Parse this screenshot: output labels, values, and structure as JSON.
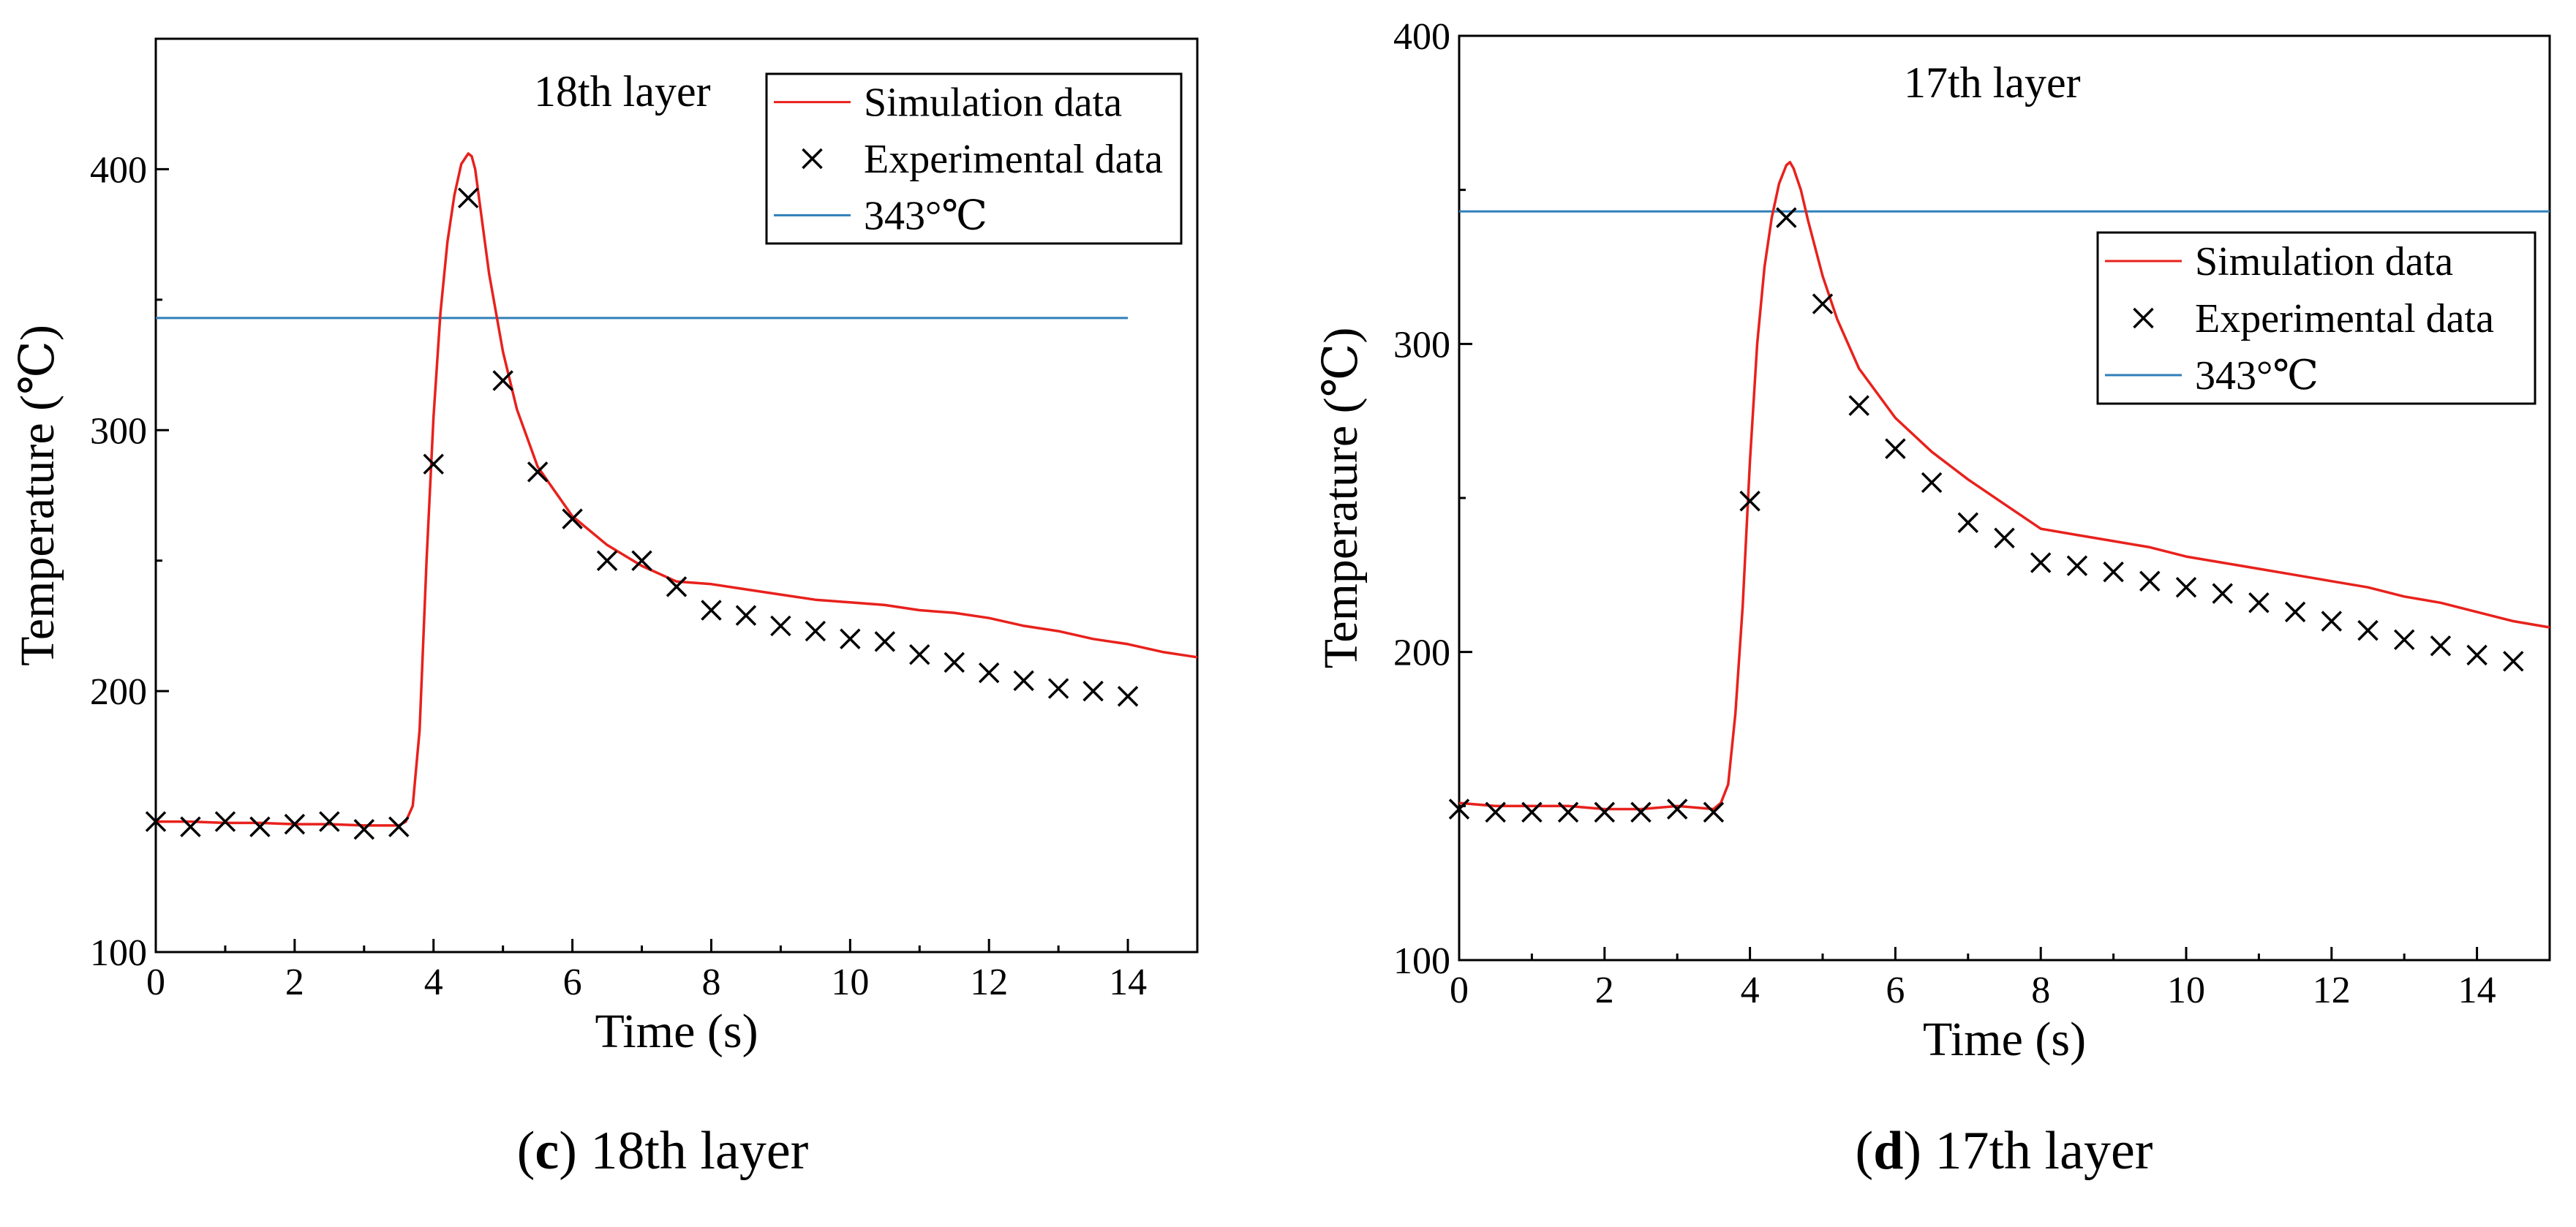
{
  "colors": {
    "simulation": "#e8211c",
    "threshold": "#2f7fb8",
    "experimental": "#000000",
    "axis": "#000000"
  },
  "chart_data": [
    {
      "type": "line",
      "panel": "c",
      "title": "18th layer",
      "caption_letter": "c",
      "caption_text": " 18th layer",
      "xlabel": "Time (s)",
      "ylabel": "Temperature (℃)",
      "xlim": [
        0,
        15
      ],
      "ylim": [
        100,
        450
      ],
      "xticks": [
        0,
        2,
        4,
        6,
        8,
        10,
        12,
        14
      ],
      "yticks": [
        100,
        200,
        300,
        400
      ],
      "legend_position": "top-right",
      "threshold": {
        "name": "343°℃",
        "value": 343,
        "x_range": [
          0,
          14
        ]
      },
      "series": [
        {
          "name": "Simulation data",
          "style": "line",
          "x": [
            0,
            0.5,
            1,
            1.5,
            2,
            2.5,
            3,
            3.5,
            3.6,
            3.7,
            3.8,
            3.9,
            4.0,
            4.1,
            4.2,
            4.3,
            4.4,
            4.5,
            4.55,
            4.6,
            4.7,
            4.8,
            5.0,
            5.2,
            5.5,
            6,
            6.5,
            7,
            7.5,
            8,
            8.5,
            9,
            9.5,
            10,
            10.5,
            11,
            11.5,
            12,
            12.5,
            13,
            13.5,
            14,
            14.5,
            15
          ],
          "y": [
            150,
            150,
            149.5,
            149.5,
            149,
            149,
            148.5,
            148.5,
            150,
            156,
            185,
            250,
            305,
            345,
            372,
            390,
            402,
            406,
            405,
            400,
            380,
            360,
            330,
            308,
            286,
            267,
            256,
            248,
            242,
            241,
            239,
            237,
            235,
            234,
            233,
            231,
            230,
            228,
            225,
            223,
            220,
            218,
            215,
            213
          ]
        },
        {
          "name": "Experimental data",
          "style": "marker-x",
          "x": [
            0,
            0.5,
            1,
            1.5,
            2,
            2.5,
            3,
            3.5,
            4,
            4.5,
            5,
            5.5,
            6,
            6.5,
            7,
            7.5,
            8,
            8.5,
            9,
            9.5,
            10,
            10.5,
            11,
            11.5,
            12,
            12.5,
            13,
            13.5,
            14
          ],
          "y": [
            150,
            148,
            150,
            148,
            149,
            150,
            147,
            148,
            287,
            389,
            319,
            284,
            266,
            250,
            250,
            240,
            231,
            229,
            225,
            223,
            220,
            219,
            214,
            211,
            207,
            204,
            201,
            200,
            198
          ]
        }
      ]
    },
    {
      "type": "line",
      "panel": "d",
      "title": "17th layer",
      "caption_letter": "d",
      "caption_text": " 17th layer",
      "xlabel": "Time (s)",
      "ylabel": "Temperature (℃)",
      "xlim": [
        0,
        15
      ],
      "ylim": [
        100,
        400
      ],
      "xticks": [
        0,
        2,
        4,
        6,
        8,
        10,
        12,
        14
      ],
      "yticks": [
        100,
        200,
        300,
        400
      ],
      "legend_position": "center-right",
      "threshold": {
        "name": "343°℃",
        "value": 343,
        "x_range": [
          0,
          15
        ]
      },
      "series": [
        {
          "name": "Simulation data",
          "style": "line",
          "x": [
            0,
            0.5,
            1,
            1.5,
            2,
            2.5,
            3,
            3.5,
            3.6,
            3.7,
            3.8,
            3.9,
            4.0,
            4.1,
            4.2,
            4.3,
            4.4,
            4.5,
            4.55,
            4.6,
            4.7,
            4.8,
            5.0,
            5.2,
            5.5,
            6,
            6.5,
            7,
            7.5,
            8,
            8.5,
            9,
            9.5,
            10,
            10.5,
            11,
            11.5,
            12,
            12.5,
            13,
            13.5,
            14,
            14.5,
            15
          ],
          "y": [
            151,
            150,
            150,
            150,
            149,
            149,
            150,
            149,
            151,
            157,
            180,
            215,
            262,
            300,
            325,
            341,
            352,
            358,
            359,
            357,
            350,
            340,
            322,
            308,
            292,
            276,
            265,
            256,
            248,
            240,
            238,
            236,
            234,
            231,
            229,
            227,
            225,
            223,
            221,
            218,
            216,
            213,
            210,
            208
          ]
        },
        {
          "name": "Experimental data",
          "style": "marker-x",
          "x": [
            0,
            0.5,
            1,
            1.5,
            2,
            2.5,
            3,
            3.5,
            4,
            4.5,
            5,
            5.5,
            6,
            6.5,
            7,
            7.5,
            8,
            8.5,
            9,
            9.5,
            10,
            10.5,
            11,
            11.5,
            12,
            12.5,
            13,
            13.5,
            14,
            14.5
          ],
          "y": [
            149,
            148,
            148,
            148,
            148,
            148,
            149,
            148,
            249,
            341,
            313,
            280,
            266,
            255,
            242,
            237,
            229,
            228,
            226,
            223,
            221,
            219,
            216,
            213,
            210,
            207,
            204,
            202,
            199,
            197
          ]
        }
      ]
    }
  ]
}
